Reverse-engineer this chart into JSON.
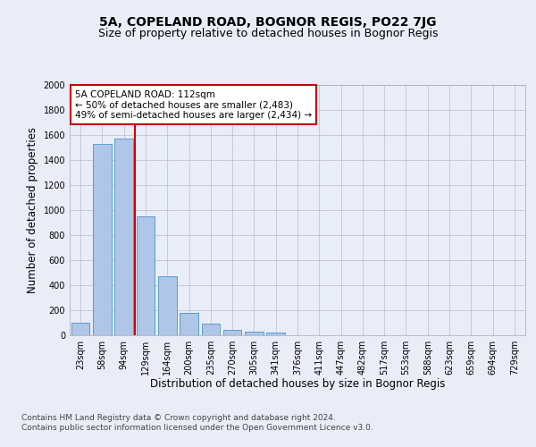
{
  "title": "5A, COPELAND ROAD, BOGNOR REGIS, PO22 7JG",
  "subtitle": "Size of property relative to detached houses in Bognor Regis",
  "xlabel": "Distribution of detached houses by size in Bognor Regis",
  "ylabel": "Number of detached properties",
  "footer_line1": "Contains HM Land Registry data © Crown copyright and database right 2024.",
  "footer_line2": "Contains public sector information licensed under the Open Government Licence v3.0.",
  "categories": [
    "23sqm",
    "58sqm",
    "94sqm",
    "129sqm",
    "164sqm",
    "200sqm",
    "235sqm",
    "270sqm",
    "305sqm",
    "341sqm",
    "376sqm",
    "411sqm",
    "447sqm",
    "482sqm",
    "517sqm",
    "553sqm",
    "588sqm",
    "623sqm",
    "659sqm",
    "694sqm",
    "729sqm"
  ],
  "values": [
    100,
    1530,
    1570,
    950,
    470,
    180,
    90,
    40,
    30,
    20,
    0,
    0,
    0,
    0,
    0,
    0,
    0,
    0,
    0,
    0,
    0
  ],
  "bar_color": "#aec6e8",
  "bar_edge_color": "#5a9fd4",
  "vline_x_index": 2.5,
  "vline_color": "#cc0000",
  "annotation_line1": "5A COPELAND ROAD: 112sqm",
  "annotation_line2": "← 50% of detached houses are smaller (2,483)",
  "annotation_line3": "49% of semi-detached houses are larger (2,434) →",
  "annotation_box_color": "#ffffff",
  "annotation_box_edge": "#cc0000",
  "ylim": [
    0,
    2000
  ],
  "yticks": [
    0,
    200,
    400,
    600,
    800,
    1000,
    1200,
    1400,
    1600,
    1800,
    2000
  ],
  "background_color": "#e8edf8",
  "plot_bg_color": "#e8edf8",
  "title_fontsize": 10,
  "subtitle_fontsize": 9,
  "axis_label_fontsize": 8.5,
  "tick_fontsize": 7,
  "annotation_fontsize": 7.5,
  "footer_fontsize": 6.5
}
